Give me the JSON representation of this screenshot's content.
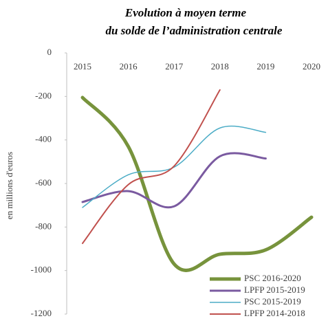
{
  "chart_data": {
    "type": "line",
    "title": "Evolution à moyen terme",
    "subtitle": "du solde de l’administration centrale",
    "y_label": "en millions d'euros",
    "categories": [
      "2015",
      "2016",
      "2017",
      "2018",
      "2019",
      "2020"
    ],
    "series": [
      {
        "name": "PSC 2016-2020",
        "color": "#77933c",
        "width": 5,
        "values": [
          -205,
          -430,
          -970,
          -925,
          -905,
          -755
        ]
      },
      {
        "name": "LPFP 2015-2019",
        "color": "#7a5aa0",
        "width": 3,
        "values": [
          -685,
          -635,
          -705,
          -475,
          -485,
          null
        ]
      },
      {
        "name": "PSC 2015-2019",
        "color": "#4bacc6",
        "width": 1.5,
        "values": [
          -710,
          -560,
          -525,
          -345,
          -365,
          null
        ]
      },
      {
        "name": "LPFP 2014-2018",
        "color": "#c0504d",
        "width": 2,
        "values": [
          -875,
          -605,
          -520,
          -170,
          null,
          null
        ]
      }
    ],
    "ylim": [
      0,
      -1200
    ],
    "yticks": [
      0,
      -200,
      -400,
      -600,
      -800,
      -1000,
      -1200
    ],
    "legend": "bottom-right"
  }
}
